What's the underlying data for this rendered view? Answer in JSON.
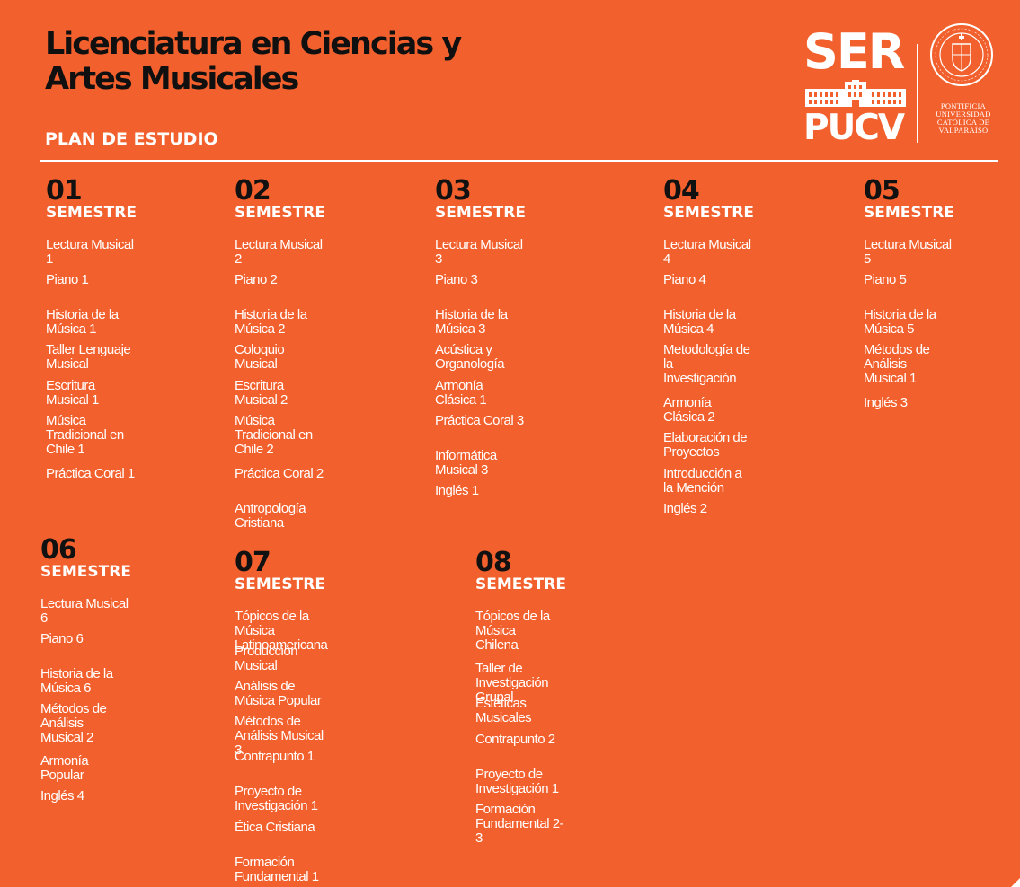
{
  "header": {
    "title_line1": "Licenciatura en Ciencias y",
    "title_line2": "Artes Musicales",
    "subtitle": "PLAN DE ESTUDIO"
  },
  "logo": {
    "ser": "SER",
    "pucv": "PUCV",
    "university_line1": "PONTIFICIA",
    "university_line2": "UNIVERSIDAD",
    "university_line3": "CATÓLICA DE",
    "university_line4": "VALPARAÍSO"
  },
  "colors": {
    "background": "#f2612d",
    "number": "#111111",
    "text": "#ffffff"
  },
  "semesters": [
    {
      "number": "01",
      "label": "SEMESTRE",
      "courses": [
        "Lectura Musical 1",
        "Piano 1",
        "Historia de la Música  1",
        "Taller Lenguaje Musical",
        "Escritura Musical 1",
        "Música Tradicional en\nChile 1",
        "Práctica Coral 1"
      ]
    },
    {
      "number": "02",
      "label": "SEMESTRE",
      "courses": [
        "Lectura Musical 2",
        "Piano 2",
        "Historia de la Música  2",
        "Coloquio Musical",
        "Escritura Musical 2",
        "Música Tradicional en\nChile 2",
        "Práctica Coral 2",
        "Antropología Cristiana"
      ]
    },
    {
      "number": "03",
      "label": "SEMESTRE",
      "courses": [
        "Lectura Musical 3",
        "Piano 3",
        "Historia de la Música  3",
        "Acústica y Organología",
        "Armonía Clásica 1",
        "Práctica Coral 3",
        "Informática Musical 3",
        "Inglés 1"
      ]
    },
    {
      "number": "04",
      "label": "SEMESTRE",
      "courses": [
        "Lectura Musical 4",
        "Piano 4",
        "Historia de la Música  4",
        "Metodología de la\nInvestigación",
        "Armonía Clásica 2",
        "Elaboración de Proyectos",
        "Introducción a la Mención",
        "Inglés 2"
      ]
    },
    {
      "number": "05",
      "label": "SEMESTRE",
      "courses": [
        "Lectura Musical 5",
        "Piano 5",
        "Historia de la Música  5",
        "Métodos de Análisis\nMusical 1",
        "Inglés 3"
      ]
    },
    {
      "number": "06",
      "label": "SEMESTRE",
      "courses": [
        "Lectura Musical 6",
        "Piano 6",
        "Historia de la Música  6",
        "Métodos de Análisis\nMusical 2",
        "Armonía Popular",
        "Inglés 4"
      ]
    },
    {
      "number": "07",
      "label": "SEMESTRE",
      "courses": [
        "Tópicos de la Música Latinoamericana",
        "Producción Musical",
        "Análisis de Música Popular",
        "Métodos de Análisis Musical 3",
        "Contrapunto 1",
        "Proyecto de Investigación 1",
        "Ética Cristiana",
        "Formación Fundamental 1"
      ]
    },
    {
      "number": "08",
      "label": "SEMESTRE",
      "courses": [
        "Tópicos de la Música\nChilena",
        "Taller de Investigación Grupal",
        "Estéticas Musicales",
        "Contrapunto 2",
        "Proyecto de Investigación 1",
        "Formación Fundamental 2-3"
      ]
    }
  ]
}
